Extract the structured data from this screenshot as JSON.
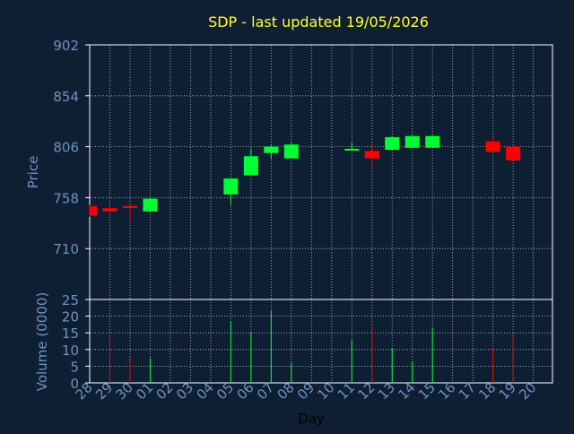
{
  "chart_data": {
    "type": "candlestick",
    "title": "SDP - last updated 19/05/2026",
    "price_panel": {
      "ylabel": "Price",
      "ylim": [
        662,
        902
      ],
      "yticks": [
        902,
        854,
        806,
        758,
        710
      ],
      "grid": true
    },
    "volume_panel": {
      "ylabel": "Volume (0000)",
      "ylim": [
        0,
        25
      ],
      "yticks": [
        25,
        20,
        15,
        10,
        5,
        0
      ],
      "grid": true
    },
    "xlabel": "Day",
    "day_labels": [
      "28",
      "29",
      "30",
      "01",
      "02",
      "03",
      "04",
      "05",
      "06",
      "07",
      "08",
      "09",
      "10",
      "11",
      "12",
      "13",
      "14",
      "15",
      "16",
      "17",
      "18",
      "19",
      "20"
    ],
    "candles": [
      {
        "day": "28",
        "open": 750,
        "close": 741,
        "high": 751,
        "low": 740,
        "volume": 0
      },
      {
        "day": "29",
        "open": 748,
        "close": 745,
        "high": 749,
        "low": 744,
        "volume": 14.5
      },
      {
        "day": "30",
        "open": 750,
        "close": 749,
        "high": 752,
        "low": 736,
        "volume": 7
      },
      {
        "day": "01",
        "open": 745,
        "close": 757,
        "high": 758,
        "low": 744,
        "volume": 7.5
      },
      {
        "day": "05",
        "open": 761,
        "close": 776,
        "high": 776,
        "low": 751,
        "volume": 18.5
      },
      {
        "day": "06",
        "open": 779,
        "close": 797,
        "high": 804,
        "low": 779,
        "volume": 15
      },
      {
        "day": "07",
        "open": 800,
        "close": 806,
        "high": 807,
        "low": 794,
        "volume": 21.5
      },
      {
        "day": "08",
        "open": 795,
        "close": 808,
        "high": 810,
        "low": 795,
        "volume": 6
      },
      {
        "day": "11",
        "open": 803,
        "close": 804,
        "high": 810,
        "low": 802,
        "volume": 13
      },
      {
        "day": "12",
        "open": 802,
        "close": 795,
        "high": 810,
        "low": 786,
        "volume": 17
      },
      {
        "day": "13",
        "open": 803,
        "close": 815,
        "high": 816,
        "low": 803,
        "volume": 10.5
      },
      {
        "day": "14",
        "open": 805,
        "close": 816,
        "high": 817,
        "low": 805,
        "volume": 6.5
      },
      {
        "day": "15",
        "open": 805,
        "close": 816,
        "high": 817,
        "low": 805,
        "volume": 16.5
      },
      {
        "day": "18",
        "open": 811,
        "close": 801,
        "high": 816,
        "low": 800,
        "volume": 10.5
      },
      {
        "day": "19",
        "open": 806,
        "close": 793,
        "high": 806,
        "low": 793,
        "volume": 14
      }
    ],
    "colors": {
      "background": "#0f1f33",
      "text": "#6f93c2",
      "title": "#ffff33",
      "up": "#00ff33",
      "down": "#ff0000",
      "axis": "#ffffff"
    }
  }
}
